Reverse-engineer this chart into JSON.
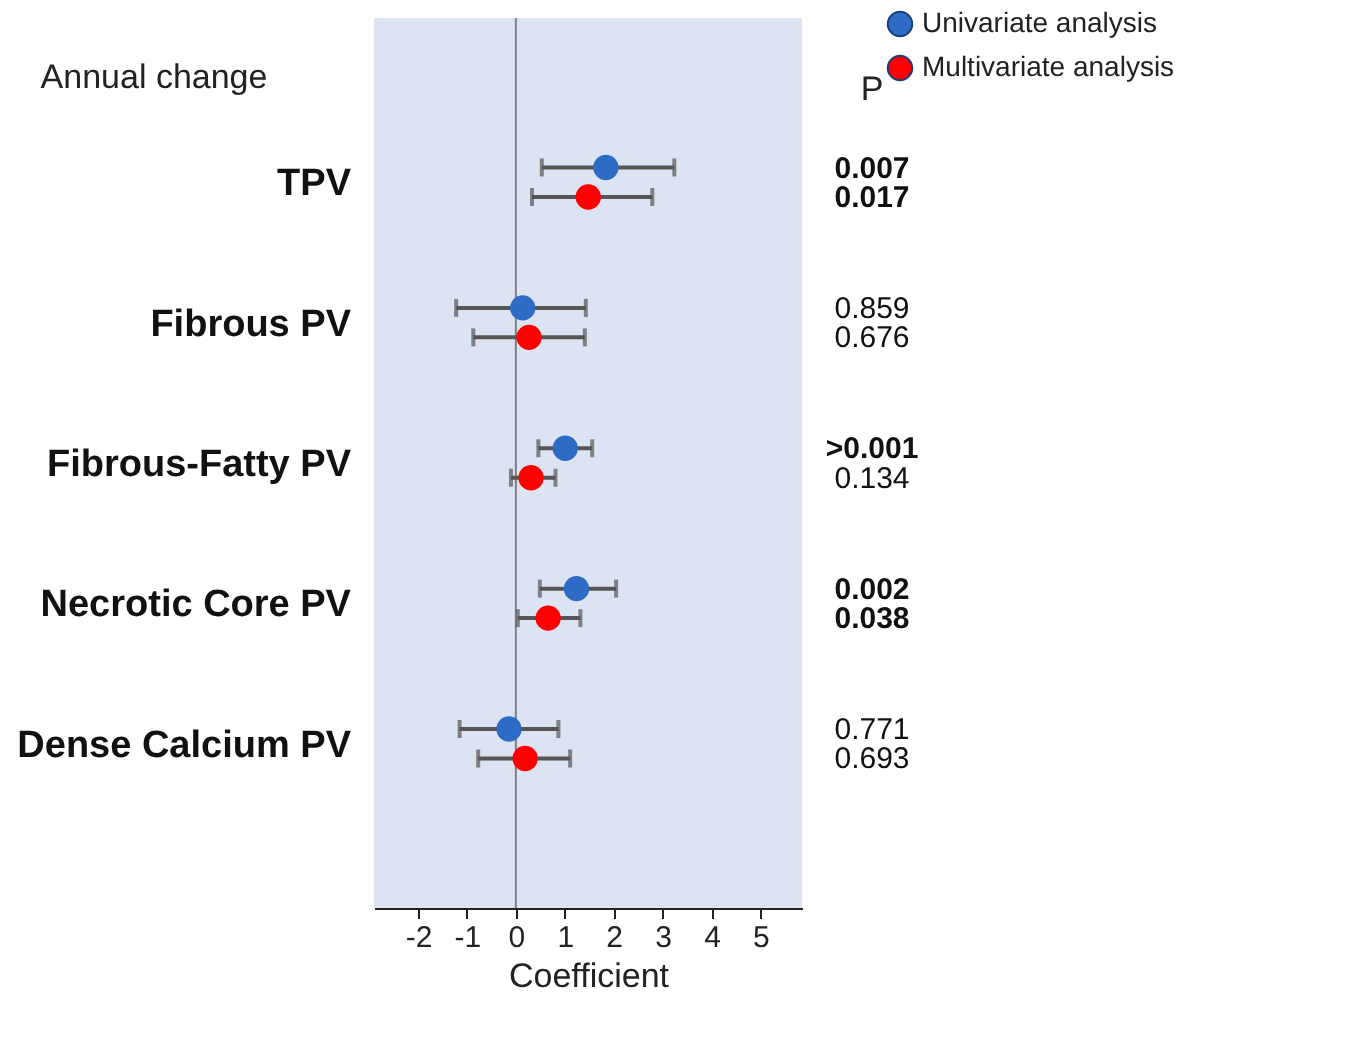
{
  "chart_data": {
    "type": "scatter",
    "orientation": "horizontal",
    "xlabel": "Coefficient",
    "categories": [
      "TPV",
      "Fibrous PV",
      "Fibrous-Fatty PV",
      "Necrotic Core PV",
      "Dense Calcium PV"
    ],
    "series": [
      {
        "name": "Univariate analysis",
        "color": "#2e6bc4",
        "values": [
          1.84,
          0.14,
          1.01,
          1.24,
          -0.14
        ],
        "errors": [
          [
            0.53,
            3.24
          ],
          [
            -1.22,
            1.43
          ],
          [
            0.46,
            1.56
          ],
          [
            0.49,
            2.05
          ],
          [
            -1.15,
            0.87
          ]
        ]
      },
      {
        "name": "Multivariate analysis",
        "color": "#ff0000",
        "values": [
          1.48,
          0.27,
          0.31,
          0.66,
          0.19
        ],
        "errors": [
          [
            0.33,
            2.79
          ],
          [
            -0.87,
            1.41
          ],
          [
            -0.1,
            0.81
          ],
          [
            0.04,
            1.32
          ],
          [
            -0.77,
            1.11
          ]
        ]
      }
    ],
    "xlim": [
      -2.9,
      5.85
    ],
    "xticks": [
      -2,
      -1,
      0,
      1,
      2,
      3,
      4,
      5
    ],
    "ref_lines": [
      {
        "axis": "x",
        "value": 0,
        "color": "#808080"
      }
    ],
    "annotations": [
      "Annual change",
      "P",
      "0.007",
      "0.017",
      "0.859",
      "0.676",
      ">0.001",
      "0.134",
      "0.002",
      "0.038",
      "0.771",
      "0.693"
    ],
    "marker": "circle",
    "grid": false,
    "legend": "top right"
  }
}
